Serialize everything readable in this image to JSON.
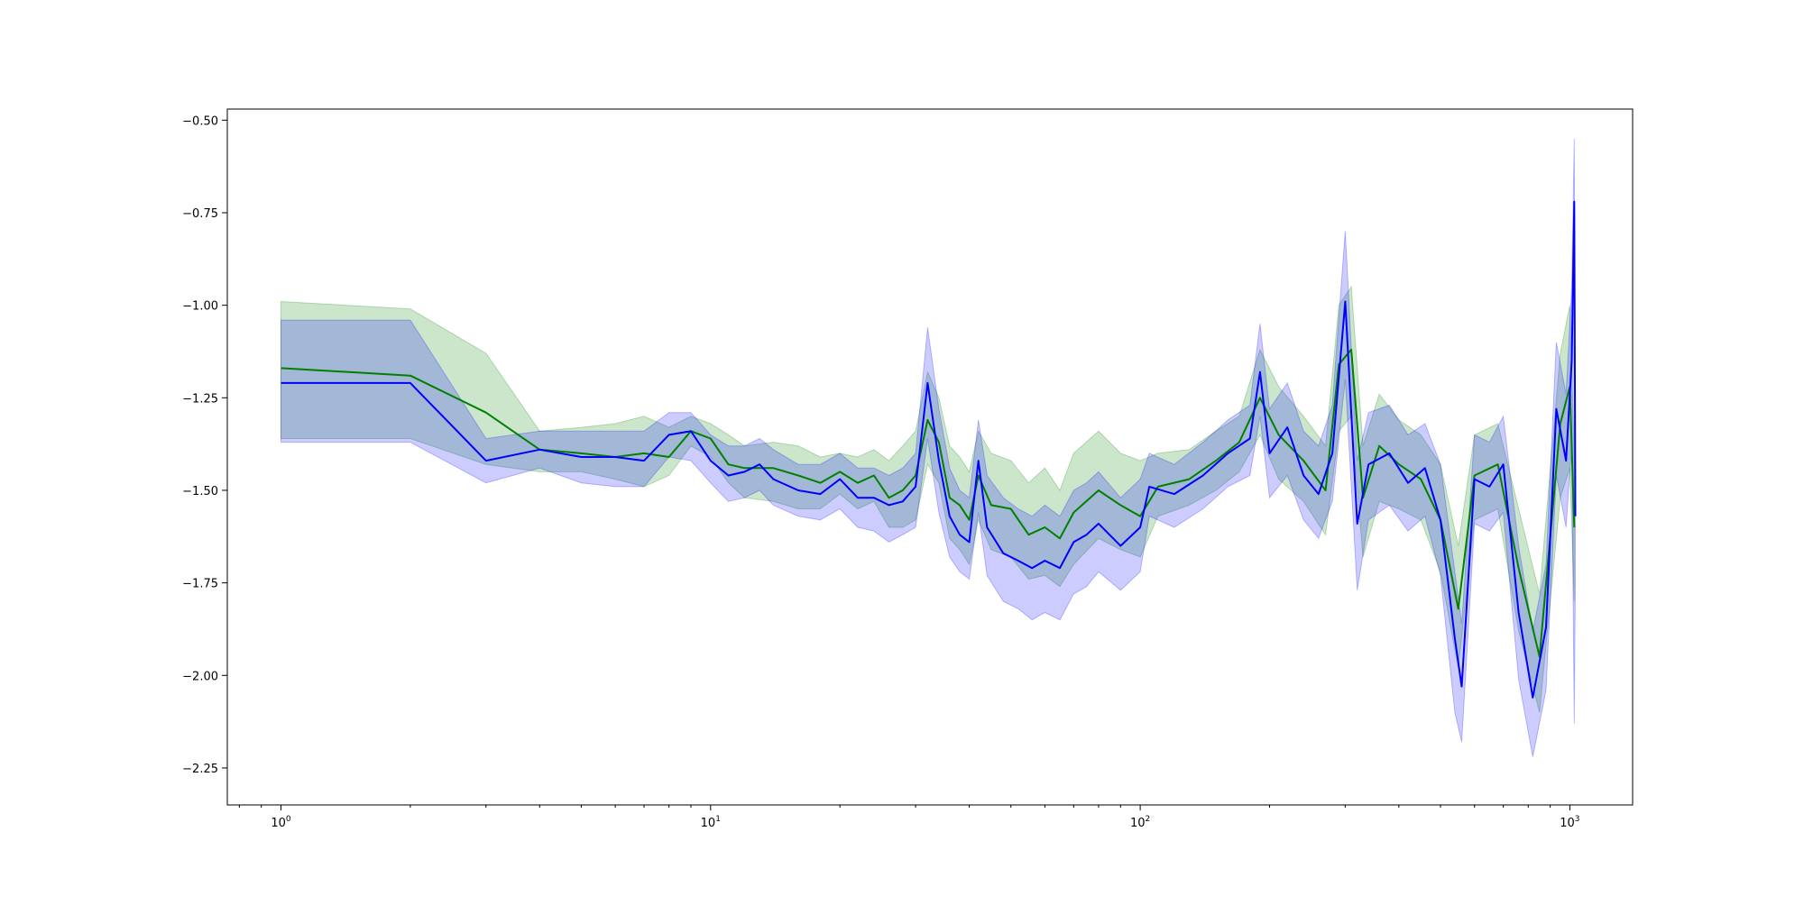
{
  "chart_data": {
    "type": "line",
    "title": "",
    "xlabel": "",
    "ylabel": "",
    "x_scale": "log",
    "xlim": [
      0.75,
      1400
    ],
    "ylim": [
      -2.35,
      -0.47
    ],
    "grid": false,
    "x_ticks": [
      {
        "value": 1,
        "base": "10",
        "exp": "0"
      },
      {
        "value": 10,
        "base": "10",
        "exp": "1"
      },
      {
        "value": 100,
        "base": "10",
        "exp": "2"
      },
      {
        "value": 1000,
        "base": "10",
        "exp": "3"
      }
    ],
    "y_ticks": [
      {
        "value": -0.5,
        "label": "−0.50"
      },
      {
        "value": -0.75,
        "label": "−0.75"
      },
      {
        "value": -1.0,
        "label": "−1.00"
      },
      {
        "value": -1.25,
        "label": "−1.25"
      },
      {
        "value": -1.5,
        "label": "−1.50"
      },
      {
        "value": -1.75,
        "label": "−1.75"
      },
      {
        "value": -2.0,
        "label": "−2.00"
      },
      {
        "value": -2.25,
        "label": "−2.25"
      }
    ],
    "series": [
      {
        "color": "#008000",
        "band_color": "#008000",
        "points": [
          [
            1,
            -1.17,
            -0.99,
            -1.36
          ],
          [
            2,
            -1.19,
            -1.01,
            -1.36
          ],
          [
            3,
            -1.29,
            -1.13,
            -1.43
          ],
          [
            4,
            -1.39,
            -1.34,
            -1.45
          ],
          [
            5,
            -1.4,
            -1.33,
            -1.45
          ],
          [
            6,
            -1.41,
            -1.32,
            -1.47
          ],
          [
            7,
            -1.4,
            -1.3,
            -1.49
          ],
          [
            8,
            -1.41,
            -1.33,
            -1.46
          ],
          [
            9,
            -1.34,
            -1.3,
            -1.38
          ],
          [
            10,
            -1.36,
            -1.32,
            -1.41
          ],
          [
            11,
            -1.43,
            -1.35,
            -1.48
          ],
          [
            12,
            -1.44,
            -1.38,
            -1.52
          ],
          [
            14,
            -1.44,
            -1.37,
            -1.53
          ],
          [
            16,
            -1.46,
            -1.38,
            -1.55
          ],
          [
            18,
            -1.48,
            -1.41,
            -1.55
          ],
          [
            20,
            -1.45,
            -1.4,
            -1.51
          ],
          [
            22,
            -1.48,
            -1.41,
            -1.55
          ],
          [
            24,
            -1.46,
            -1.39,
            -1.53
          ],
          [
            26,
            -1.52,
            -1.42,
            -1.6
          ],
          [
            28,
            -1.5,
            -1.38,
            -1.6
          ],
          [
            30,
            -1.46,
            -1.34,
            -1.58
          ],
          [
            32,
            -1.31,
            -1.18,
            -1.43
          ],
          [
            34,
            -1.37,
            -1.25,
            -1.48
          ],
          [
            36,
            -1.52,
            -1.38,
            -1.63
          ],
          [
            38,
            -1.54,
            -1.41,
            -1.66
          ],
          [
            40,
            -1.58,
            -1.45,
            -1.7
          ],
          [
            42,
            -1.46,
            -1.34,
            -1.58
          ],
          [
            45,
            -1.54,
            -1.4,
            -1.66
          ],
          [
            50,
            -1.55,
            -1.42,
            -1.68
          ],
          [
            55,
            -1.62,
            -1.48,
            -1.74
          ],
          [
            60,
            -1.6,
            -1.44,
            -1.73
          ],
          [
            65,
            -1.63,
            -1.5,
            -1.76
          ],
          [
            70,
            -1.56,
            -1.4,
            -1.7
          ],
          [
            80,
            -1.5,
            -1.34,
            -1.63
          ],
          [
            90,
            -1.54,
            -1.4,
            -1.66
          ],
          [
            100,
            -1.57,
            -1.42,
            -1.68
          ],
          [
            110,
            -1.49,
            -1.4,
            -1.57
          ],
          [
            130,
            -1.47,
            -1.39,
            -1.54
          ],
          [
            150,
            -1.42,
            -1.34,
            -1.5
          ],
          [
            170,
            -1.37,
            -1.3,
            -1.45
          ],
          [
            190,
            -1.25,
            -1.12,
            -1.35
          ],
          [
            210,
            -1.35,
            -1.22,
            -1.47
          ],
          [
            240,
            -1.42,
            -1.3,
            -1.53
          ],
          [
            270,
            -1.5,
            -1.38,
            -1.62
          ],
          [
            290,
            -1.16,
            -1.0,
            -1.34
          ],
          [
            310,
            -1.12,
            -0.95,
            -1.3
          ],
          [
            330,
            -1.52,
            -1.38,
            -1.68
          ],
          [
            360,
            -1.38,
            -1.24,
            -1.53
          ],
          [
            400,
            -1.43,
            -1.31,
            -1.55
          ],
          [
            450,
            -1.47,
            -1.35,
            -1.58
          ],
          [
            500,
            -1.58,
            -1.43,
            -1.72
          ],
          [
            550,
            -1.82,
            -1.65,
            -1.98
          ],
          [
            600,
            -1.46,
            -1.35,
            -1.58
          ],
          [
            680,
            -1.43,
            -1.32,
            -1.55
          ],
          [
            760,
            -1.71,
            -1.55,
            -1.88
          ],
          [
            850,
            -1.95,
            -1.78,
            -2.1
          ],
          [
            950,
            -1.32,
            -1.13,
            -1.52
          ],
          [
            1000,
            -1.22,
            -1.0,
            -1.44
          ],
          [
            1024,
            -1.6,
            -1.4,
            -1.8
          ]
        ]
      },
      {
        "color": "#0000ff",
        "band_color": "#0000ff",
        "points": [
          [
            1,
            -1.21,
            -1.04,
            -1.37
          ],
          [
            2,
            -1.21,
            -1.04,
            -1.37
          ],
          [
            3,
            -1.42,
            -1.36,
            -1.48
          ],
          [
            4,
            -1.39,
            -1.34,
            -1.44
          ],
          [
            5,
            -1.41,
            -1.34,
            -1.48
          ],
          [
            6,
            -1.41,
            -1.34,
            -1.49
          ],
          [
            7,
            -1.42,
            -1.34,
            -1.49
          ],
          [
            8,
            -1.35,
            -1.29,
            -1.41
          ],
          [
            9,
            -1.34,
            -1.29,
            -1.42
          ],
          [
            10,
            -1.42,
            -1.35,
            -1.48
          ],
          [
            11,
            -1.46,
            -1.38,
            -1.53
          ],
          [
            12,
            -1.45,
            -1.38,
            -1.52
          ],
          [
            13,
            -1.43,
            -1.36,
            -1.5
          ],
          [
            14,
            -1.47,
            -1.39,
            -1.54
          ],
          [
            16,
            -1.5,
            -1.43,
            -1.57
          ],
          [
            18,
            -1.51,
            -1.43,
            -1.58
          ],
          [
            20,
            -1.47,
            -1.4,
            -1.55
          ],
          [
            22,
            -1.52,
            -1.44,
            -1.6
          ],
          [
            24,
            -1.52,
            -1.44,
            -1.61
          ],
          [
            26,
            -1.54,
            -1.46,
            -1.64
          ],
          [
            28,
            -1.53,
            -1.44,
            -1.62
          ],
          [
            30,
            -1.49,
            -1.4,
            -1.6
          ],
          [
            32,
            -1.21,
            -1.06,
            -1.36
          ],
          [
            34,
            -1.42,
            -1.28,
            -1.56
          ],
          [
            36,
            -1.57,
            -1.44,
            -1.68
          ],
          [
            38,
            -1.62,
            -1.5,
            -1.72
          ],
          [
            40,
            -1.64,
            -1.52,
            -1.74
          ],
          [
            42,
            -1.42,
            -1.31,
            -1.56
          ],
          [
            44,
            -1.6,
            -1.46,
            -1.73
          ],
          [
            48,
            -1.67,
            -1.52,
            -1.8
          ],
          [
            52,
            -1.69,
            -1.55,
            -1.82
          ],
          [
            56,
            -1.71,
            -1.57,
            -1.85
          ],
          [
            60,
            -1.69,
            -1.54,
            -1.83
          ],
          [
            65,
            -1.71,
            -1.57,
            -1.85
          ],
          [
            70,
            -1.64,
            -1.5,
            -1.78
          ],
          [
            75,
            -1.62,
            -1.48,
            -1.76
          ],
          [
            80,
            -1.59,
            -1.45,
            -1.72
          ],
          [
            90,
            -1.65,
            -1.52,
            -1.77
          ],
          [
            100,
            -1.6,
            -1.47,
            -1.72
          ],
          [
            105,
            -1.49,
            -1.4,
            -1.57
          ],
          [
            120,
            -1.51,
            -1.43,
            -1.6
          ],
          [
            140,
            -1.46,
            -1.37,
            -1.55
          ],
          [
            160,
            -1.4,
            -1.31,
            -1.49
          ],
          [
            180,
            -1.36,
            -1.27,
            -1.46
          ],
          [
            190,
            -1.18,
            -1.05,
            -1.3
          ],
          [
            200,
            -1.4,
            -1.28,
            -1.52
          ],
          [
            220,
            -1.33,
            -1.21,
            -1.46
          ],
          [
            240,
            -1.46,
            -1.34,
            -1.58
          ],
          [
            260,
            -1.51,
            -1.38,
            -1.63
          ],
          [
            280,
            -1.4,
            -1.27,
            -1.53
          ],
          [
            300,
            -0.99,
            -0.8,
            -1.2
          ],
          [
            320,
            -1.59,
            -1.42,
            -1.77
          ],
          [
            340,
            -1.43,
            -1.29,
            -1.58
          ],
          [
            380,
            -1.4,
            -1.27,
            -1.54
          ],
          [
            420,
            -1.48,
            -1.35,
            -1.61
          ],
          [
            460,
            -1.44,
            -1.32,
            -1.57
          ],
          [
            500,
            -1.58,
            -1.43,
            -1.73
          ],
          [
            540,
            -1.9,
            -1.72,
            -2.1
          ],
          [
            560,
            -2.03,
            -1.86,
            -2.18
          ],
          [
            600,
            -1.47,
            -1.35,
            -1.59
          ],
          [
            650,
            -1.49,
            -1.37,
            -1.61
          ],
          [
            700,
            -1.43,
            -1.3,
            -1.56
          ],
          [
            760,
            -1.83,
            -1.65,
            -2.01
          ],
          [
            820,
            -2.06,
            -1.88,
            -2.22
          ],
          [
            880,
            -1.87,
            -1.7,
            -2.04
          ],
          [
            930,
            -1.28,
            -1.1,
            -1.46
          ],
          [
            980,
            -1.42,
            -1.24,
            -1.6
          ],
          [
            1010,
            -1.15,
            -0.95,
            -1.38
          ],
          [
            1024,
            -0.72,
            -0.55,
            -2.13
          ],
          [
            1030,
            -1.57,
            -1.4,
            -1.75
          ]
        ]
      }
    ]
  }
}
